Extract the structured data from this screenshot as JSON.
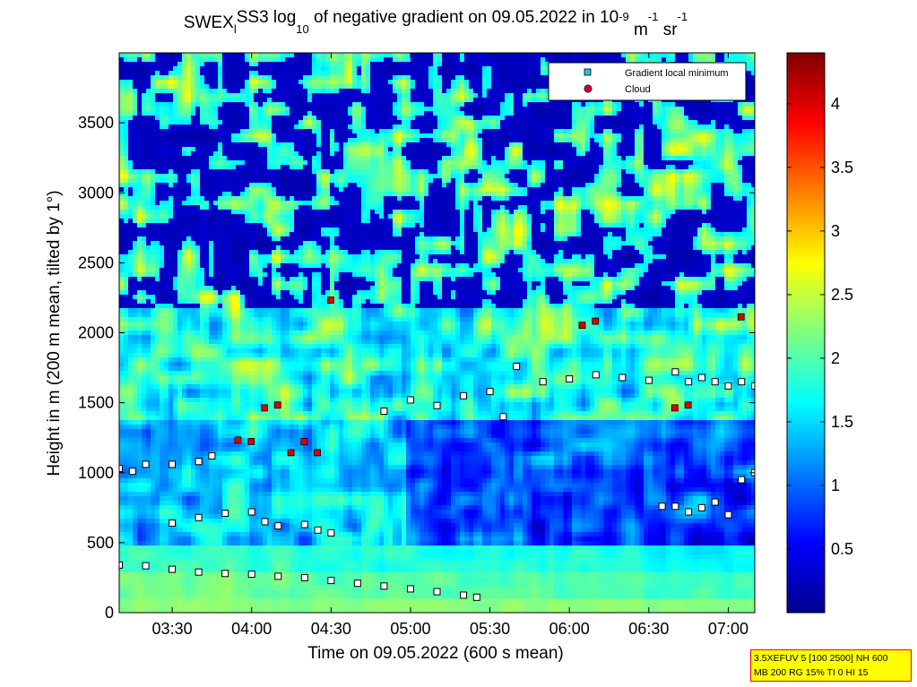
{
  "figure": {
    "title_parts": [
      "SWEX",
      "l",
      "SS3 log",
      "10",
      " of negative gradient on 09.05.2022 in 10",
      "-9",
      " m",
      "-1",
      " sr",
      "-1"
    ],
    "xlabel": "Time on 09.05.2022 (600 s mean)",
    "ylabel": "Height in m (200 m mean, tilted by 1°)"
  },
  "info_box": {
    "line1": "3.5XEFUV 5 [100 2500] NH 600",
    "line2": "MB 200 RG 15% TI 0 HI 15"
  },
  "colors": {
    "minimum_marker": "#22c8d8",
    "cloud_marker": "#e00000",
    "colormap": "jet"
  },
  "chart_data": {
    "type": "heatmap",
    "x_range": [
      "03:10",
      "07:10"
    ],
    "x_ticks": [
      "03:30",
      "04:00",
      "04:30",
      "05:00",
      "05:30",
      "06:00",
      "06:30",
      "07:00"
    ],
    "y_range": [
      0,
      4000
    ],
    "y_ticks": [
      0,
      500,
      1000,
      1500,
      2000,
      2500,
      3000,
      3500
    ],
    "y_tick_labels": [
      "0",
      "500",
      "1000",
      "1500",
      "2000",
      "2500",
      "3000",
      "3500"
    ],
    "colorbar": {
      "range": [
        0,
        4.4
      ],
      "ticks": [
        0.5,
        1,
        1.5,
        2,
        2.5,
        3,
        3.5,
        4
      ],
      "tick_labels": [
        "0.5",
        "1",
        "1.5",
        "2",
        "2.5",
        "3",
        "3.5",
        "4"
      ]
    },
    "legend": {
      "position": "top-right",
      "entries": [
        {
          "label": "Gradient local minimum",
          "marker": "square",
          "color": "#22c8d8"
        },
        {
          "label": "Cloud",
          "marker": "circle",
          "color": "#e00000"
        }
      ]
    },
    "series": [
      {
        "name": "Gradient local minimum",
        "layer": "lowest",
        "x": [
          "03:10",
          "03:20",
          "03:30",
          "03:40",
          "03:50",
          "04:00",
          "04:10",
          "04:20",
          "04:30",
          "04:40",
          "04:50",
          "05:00",
          "05:10",
          "05:20",
          "05:25"
        ],
        "y": [
          340,
          335,
          310,
          290,
          280,
          275,
          260,
          250,
          230,
          210,
          190,
          170,
          150,
          125,
          110
        ]
      },
      {
        "name": "Gradient local minimum",
        "layer": "second",
        "x": [
          "03:30",
          "03:40",
          "03:50",
          "04:00",
          "04:05",
          "04:10",
          "04:20",
          "04:25",
          "04:30"
        ],
        "y": [
          640,
          680,
          710,
          720,
          650,
          620,
          630,
          590,
          570
        ]
      },
      {
        "name": "Gradient local minimum",
        "layer": "third",
        "x": [
          "03:10",
          "03:15",
          "03:20",
          "03:30",
          "03:40",
          "03:45"
        ],
        "y": [
          1030,
          1010,
          1060,
          1060,
          1080,
          1120
        ]
      },
      {
        "name": "Gradient local minimum",
        "layer": "upper",
        "x": [
          "04:50",
          "05:00",
          "05:10",
          "05:20",
          "05:30",
          "05:35",
          "05:40",
          "05:50",
          "06:00",
          "06:10",
          "06:20",
          "06:30"
        ],
        "y": [
          1440,
          1520,
          1480,
          1550,
          1580,
          1400,
          1760,
          1650,
          1670,
          1700,
          1680,
          1660
        ]
      },
      {
        "name": "Gradient local minimum",
        "layer": "late-low",
        "x": [
          "06:35",
          "06:40",
          "06:45",
          "06:50",
          "06:55",
          "07:00",
          "07:05",
          "07:10"
        ],
        "y": [
          760,
          760,
          720,
          750,
          790,
          700,
          950,
          1000
        ]
      },
      {
        "name": "Gradient local minimum",
        "layer": "late-upper",
        "x": [
          "06:40",
          "06:45",
          "06:50",
          "06:55",
          "07:00",
          "07:05",
          "07:10"
        ],
        "y": [
          1720,
          1650,
          1680,
          1650,
          1620,
          1650,
          1620
        ]
      },
      {
        "name": "Cloud",
        "x": [
          "03:55",
          "04:00",
          "04:05",
          "04:10",
          "04:15",
          "04:20",
          "04:25",
          "04:30",
          "06:05",
          "06:10",
          "06:40",
          "06:45",
          "07:05"
        ],
        "y": [
          1230,
          1220,
          1460,
          1480,
          1140,
          1220,
          1140,
          2230,
          2050,
          2080,
          1460,
          1480,
          2110
        ]
      }
    ]
  }
}
